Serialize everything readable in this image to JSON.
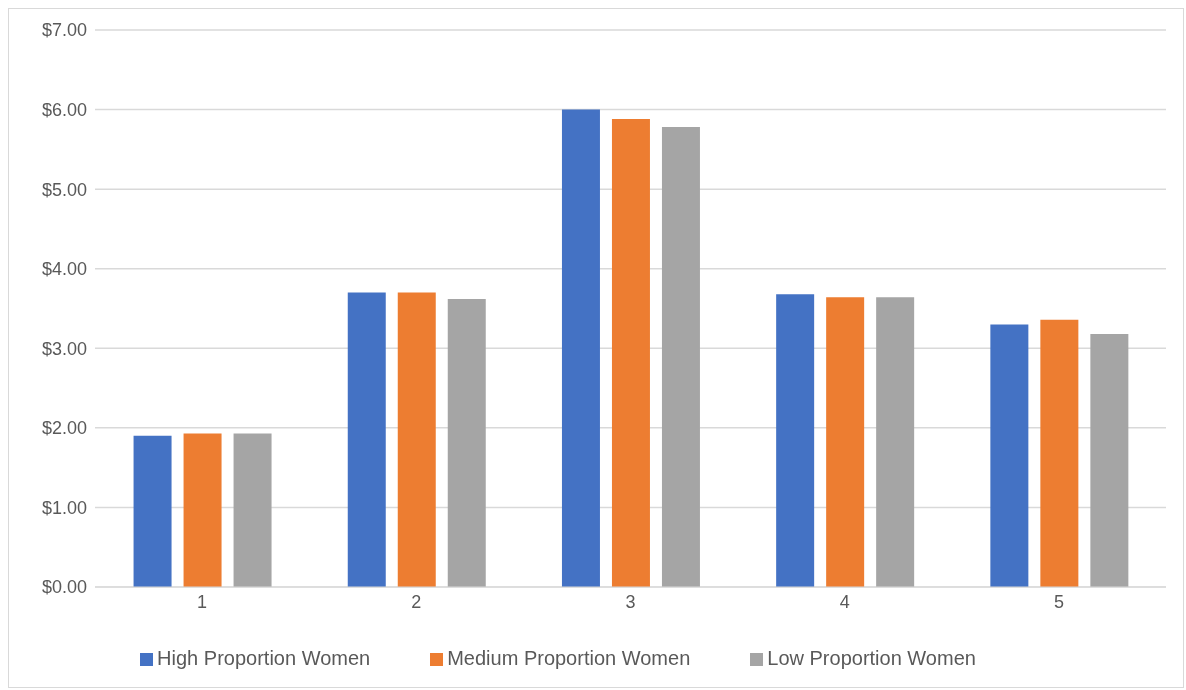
{
  "chart_data": {
    "type": "bar",
    "categories": [
      "1",
      "2",
      "3",
      "4",
      "5"
    ],
    "series": [
      {
        "name": "High Proportion Women",
        "color": "#4472c4",
        "values": [
          1.9,
          3.7,
          6.0,
          3.68,
          3.3
        ]
      },
      {
        "name": "Medium Proportion Women",
        "color": "#ed7d31",
        "values": [
          1.93,
          3.7,
          5.88,
          3.64,
          3.36
        ]
      },
      {
        "name": "Low Proportion Women",
        "color": "#a5a5a5",
        "values": [
          1.93,
          3.62,
          5.78,
          3.64,
          3.18
        ]
      }
    ],
    "ylim": [
      0,
      7
    ],
    "yticks": [
      {
        "value": 0,
        "label": "$0.00"
      },
      {
        "value": 1,
        "label": "$1.00"
      },
      {
        "value": 2,
        "label": "$2.00"
      },
      {
        "value": 3,
        "label": "$3.00"
      },
      {
        "value": 4,
        "label": "$4.00"
      },
      {
        "value": 5,
        "label": "$5.00"
      },
      {
        "value": 6,
        "label": "$6.00"
      },
      {
        "value": 7,
        "label": "$7.00"
      }
    ],
    "grid": "y",
    "legend": "bottom"
  }
}
